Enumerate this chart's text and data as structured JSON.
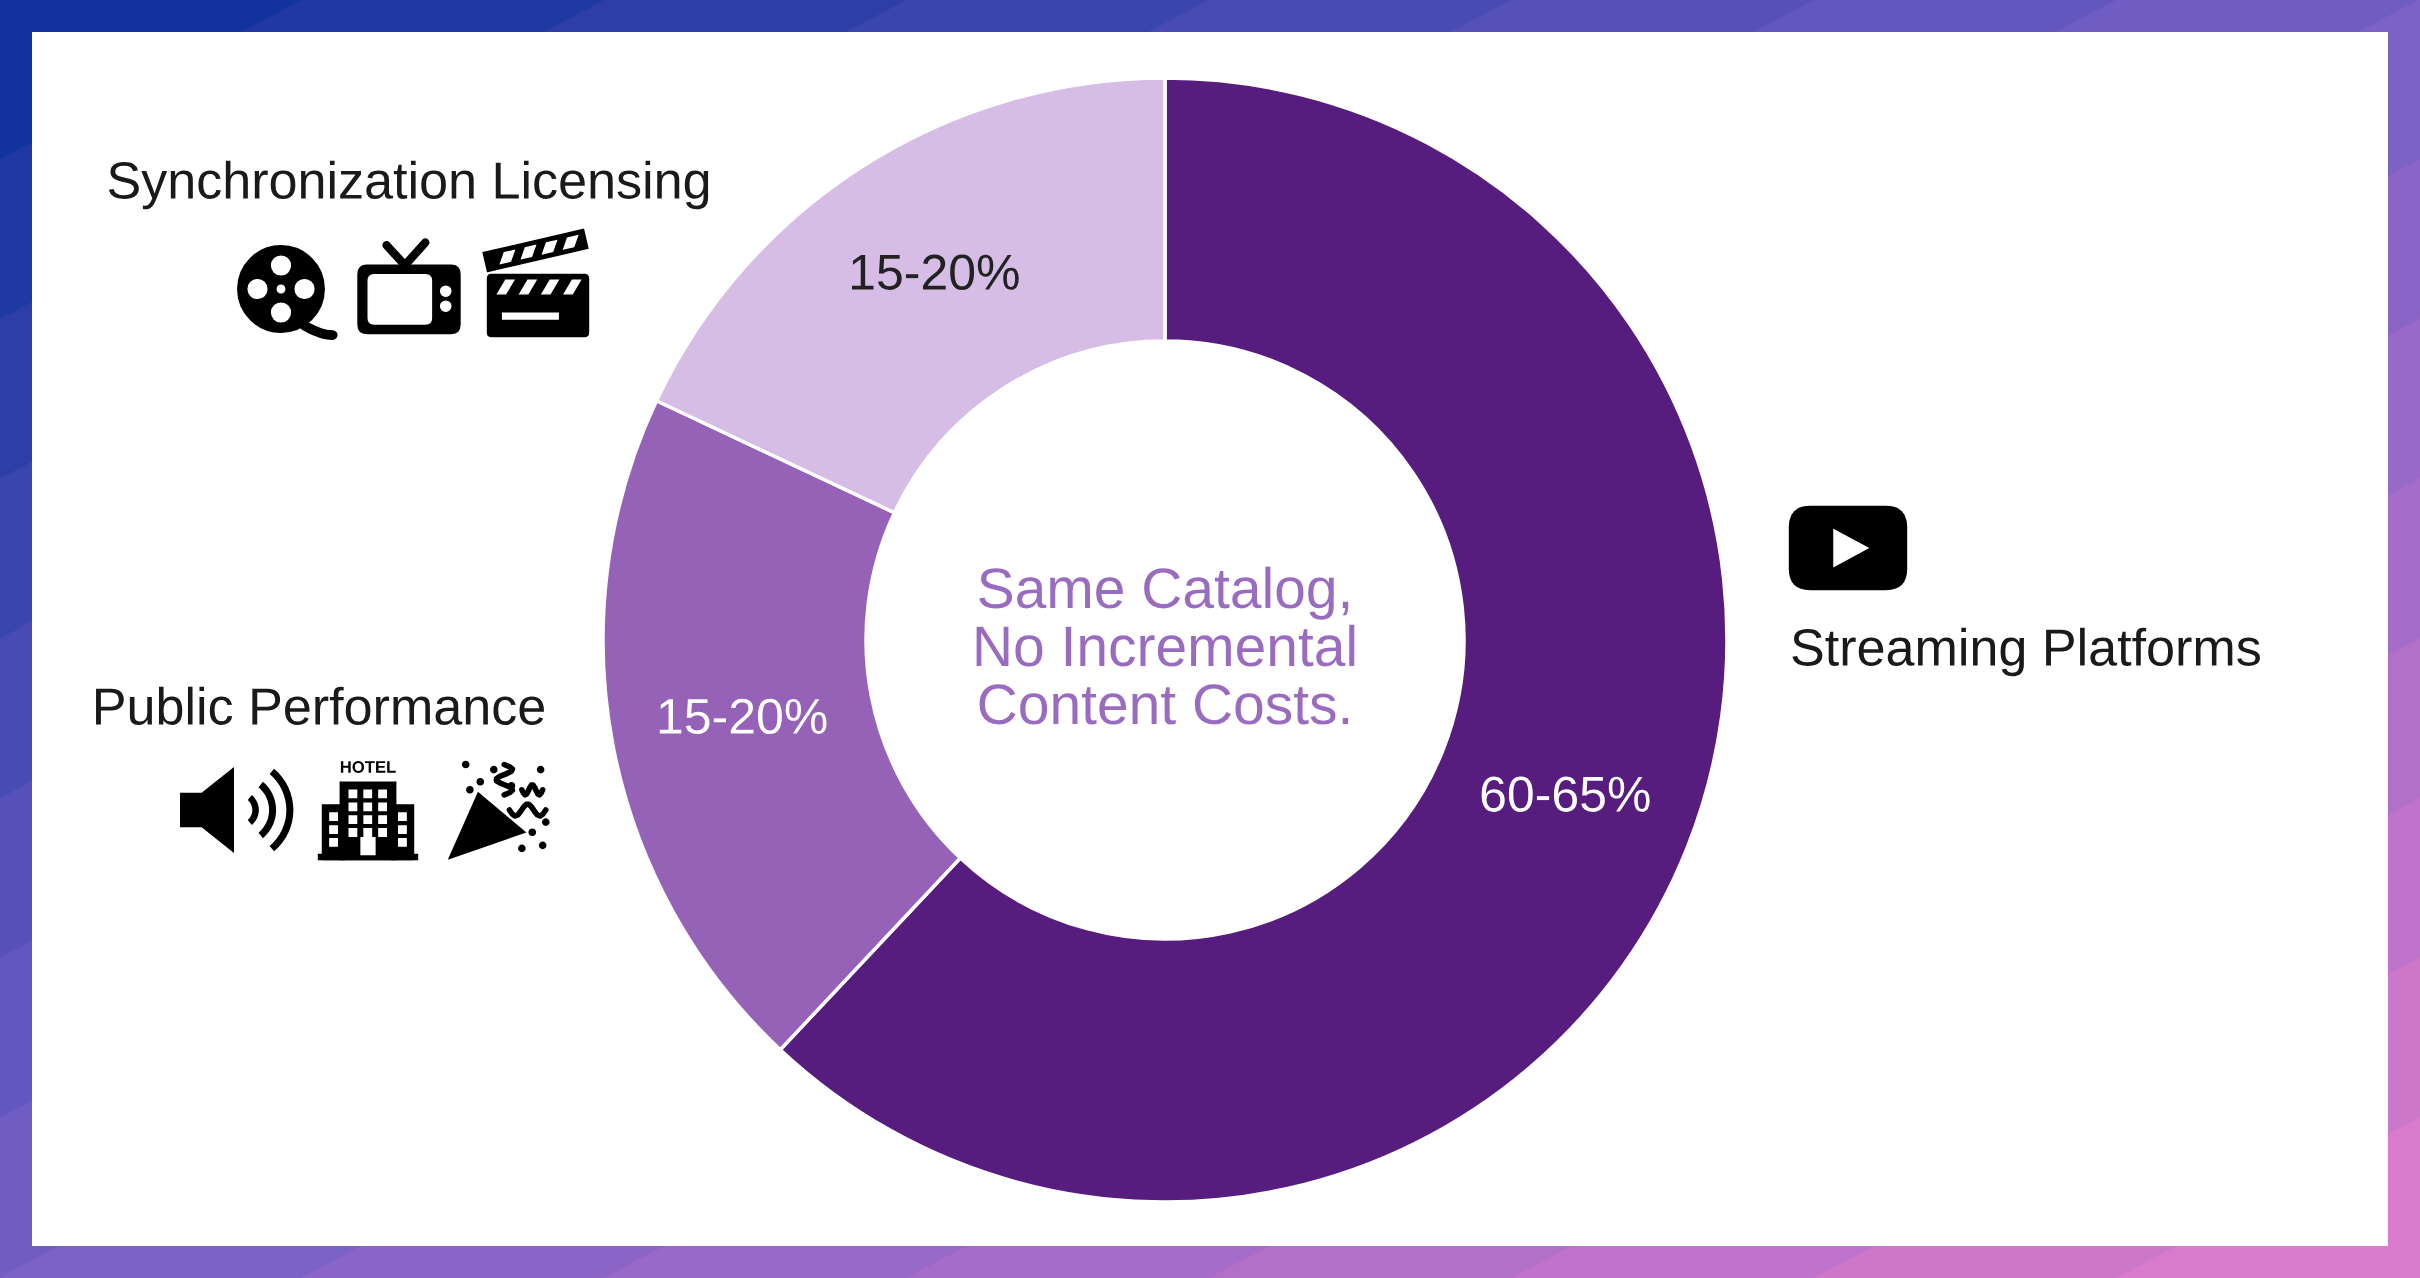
{
  "chart_data": {
    "type": "donut",
    "categories": [
      "Streaming Platforms",
      "Public Performance",
      "Synchronization Licensing"
    ],
    "values": [
      62,
      20,
      18
    ],
    "colors": [
      "#561c7e",
      "#9562b8",
      "#d6bde6"
    ],
    "annotations": [
      "Same Catalog,\nNo Incremental\nContent Costs.",
      "HOTEL",
      {
        "text": "60-65%",
        "x": "Streaming Platforms"
      },
      {
        "text": "15-20%",
        "x": "Public Performance"
      },
      {
        "text": "15-20%",
        "x": "Synchronization Licensing"
      }
    ]
  }
}
